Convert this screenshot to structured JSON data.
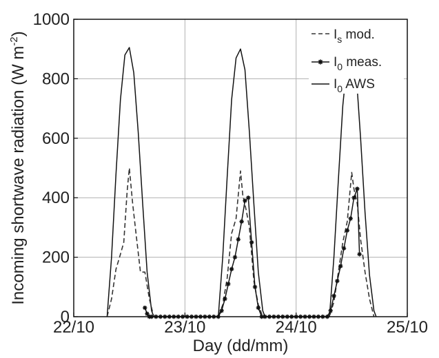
{
  "chart_data": {
    "type": "line",
    "xlabel": "Day (dd/mm)",
    "ylabel": "Incoming shortwave radiation (W m",
    "ylabel_sup": "-2",
    "ylabel_close": ")",
    "xlim": [
      0,
      3
    ],
    "ylim": [
      0,
      1000
    ],
    "x_ticks": [
      0,
      1,
      2,
      3
    ],
    "x_tick_labels": [
      "22/10",
      "23/10",
      "24/10",
      "25/10"
    ],
    "y_ticks": [
      0,
      200,
      400,
      600,
      800,
      1000
    ],
    "y_tick_labels": [
      "0",
      "200",
      "400",
      "600",
      "800",
      "1000"
    ],
    "grid": true,
    "legend_position": "top-right",
    "series": [
      {
        "name": "I_s mod.",
        "legend_main": "I",
        "legend_sub": "s",
        "legend_rest": " mod.",
        "style": "dashed",
        "color": "#333333",
        "x": [
          0.3,
          0.34,
          0.38,
          0.42,
          0.45,
          0.48,
          0.5,
          0.53,
          0.56,
          0.6,
          0.64,
          0.68,
          0.72,
          1.3,
          1.34,
          1.38,
          1.42,
          1.46,
          1.5,
          1.52,
          1.55,
          1.58,
          1.62,
          1.66,
          1.7,
          2.3,
          2.34,
          2.38,
          2.42,
          2.46,
          2.5,
          2.52,
          2.55,
          2.58,
          2.62,
          2.66,
          2.7
        ],
        "y": [
          0,
          60,
          160,
          210,
          250,
          420,
          500,
          380,
          280,
          150,
          150,
          60,
          0,
          0,
          40,
          130,
          280,
          330,
          490,
          410,
          360,
          300,
          120,
          40,
          0,
          0,
          50,
          150,
          250,
          320,
          485,
          430,
          380,
          260,
          150,
          60,
          0
        ]
      },
      {
        "name": "I_0 meas.",
        "legend_main": "I",
        "legend_sub": "0",
        "legend_rest": " meas.",
        "style": "solid-star",
        "color": "#111111",
        "x": [
          0.64,
          0.66,
          0.68,
          0.7,
          0.74,
          0.78,
          0.82,
          0.86,
          0.9,
          0.94,
          0.98,
          1.02,
          1.06,
          1.1,
          1.14,
          1.18,
          1.22,
          1.26,
          1.3,
          1.33,
          1.36,
          1.39,
          1.42,
          1.45,
          1.48,
          1.51,
          1.54,
          1.57,
          1.6,
          1.63,
          1.66,
          1.69,
          1.72,
          1.76,
          1.8,
          1.84,
          1.88,
          1.92,
          1.96,
          2.0,
          2.04,
          2.08,
          2.12,
          2.16,
          2.2,
          2.24,
          2.28,
          2.31,
          2.34,
          2.37,
          2.4,
          2.43,
          2.46,
          2.49,
          2.52,
          2.55,
          2.57
        ],
        "y": [
          30,
          10,
          0,
          0,
          0,
          0,
          0,
          0,
          0,
          0,
          0,
          0,
          0,
          0,
          0,
          0,
          0,
          0,
          0,
          20,
          60,
          110,
          160,
          200,
          260,
          320,
          390,
          400,
          250,
          100,
          30,
          0,
          0,
          0,
          0,
          0,
          0,
          0,
          0,
          0,
          0,
          0,
          0,
          0,
          0,
          0,
          0,
          20,
          70,
          120,
          170,
          230,
          290,
          330,
          400,
          430,
          210
        ]
      },
      {
        "name": "I_0 AWS",
        "legend_main": "I",
        "legend_sub": "0",
        "legend_rest": " AWS",
        "style": "solid",
        "color": "#111111",
        "x": [
          0.3,
          0.34,
          0.38,
          0.42,
          0.46,
          0.5,
          0.54,
          0.58,
          0.62,
          0.66,
          0.7,
          0.72,
          1.3,
          1.34,
          1.38,
          1.42,
          1.46,
          1.5,
          1.54,
          1.58,
          1.62,
          1.66,
          1.7,
          1.72,
          2.3,
          2.34,
          2.38,
          2.42,
          2.46,
          2.5,
          2.54,
          2.58,
          2.62,
          2.66,
          2.7,
          2.72
        ],
        "y": [
          0,
          200,
          480,
          730,
          880,
          905,
          820,
          620,
          380,
          150,
          20,
          0,
          0,
          200,
          470,
          730,
          870,
          900,
          830,
          620,
          380,
          150,
          20,
          0,
          0,
          200,
          460,
          710,
          860,
          890,
          820,
          600,
          350,
          140,
          20,
          0
        ]
      }
    ]
  }
}
